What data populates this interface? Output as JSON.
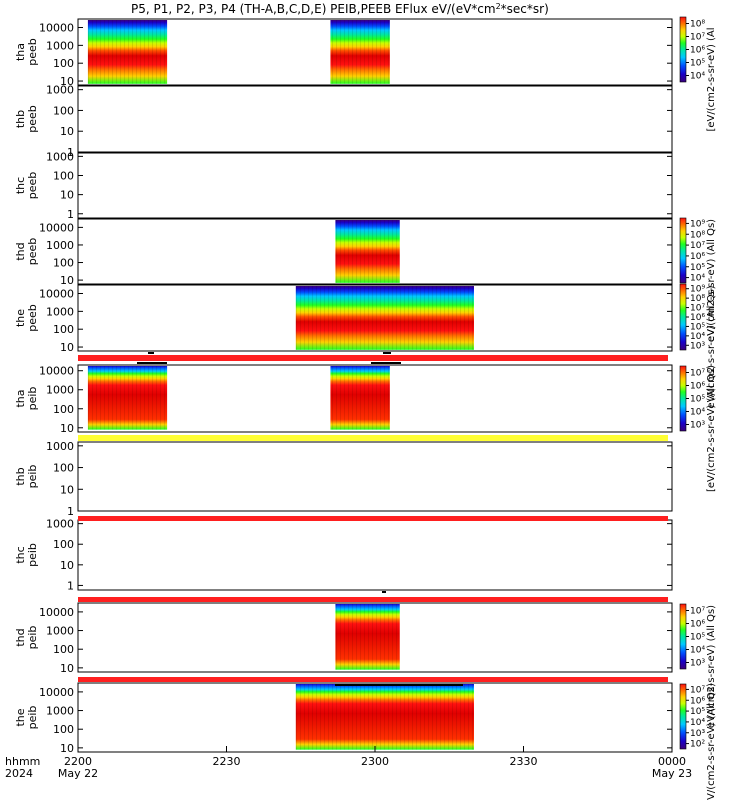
{
  "title": "P5, P1, P2, P3, P4 (TH-A,B,C,D,E) PEIB,PEEB EFlux eV/(eV*cm2*sec*sr)",
  "title_parts": {
    "main": "P5, P1, P2, P3, P4 (TH-A,B,C,D,E) PEIB,PEEB EFlux eV/(eV*cm",
    "sup": "2",
    "tail": "*sec*sr)"
  },
  "xaxis": {
    "range": [
      "2024-05-22 22:00",
      "2024-05-23 00:00"
    ],
    "ticks": [
      {
        "t": 0,
        "label": "2200",
        "sub": "May 22"
      },
      {
        "t": 30,
        "label": "2230",
        "sub": ""
      },
      {
        "t": 60,
        "label": "2300",
        "sub": ""
      },
      {
        "t": 90,
        "label": "2330",
        "sub": ""
      },
      {
        "t": 120,
        "label": "0000",
        "sub": "May 23"
      }
    ],
    "left_labels": [
      "hhmm",
      "2024"
    ]
  },
  "colors": {
    "red_bar": "#ff1f1f",
    "yellow_bar": "#ffff33",
    "colorscale": [
      "#3a007a",
      "#1a00c8",
      "#0050ff",
      "#00c8ff",
      "#00e8a0",
      "#20ff20",
      "#c8ff00",
      "#ffd000",
      "#ff7000",
      "#ff1010",
      "#d80000"
    ]
  },
  "chart_data": [
    {
      "type": "heatmap",
      "probe": "tha",
      "ylabel": [
        "tha",
        "peeb"
      ],
      "ylim": [
        6,
        30000
      ],
      "y_ticks": [
        "10",
        "100",
        "1000",
        "10000"
      ],
      "intervals": [
        [
          2,
          18
        ],
        [
          51,
          63
        ]
      ],
      "colorbar": {
        "ticks": [
          "10⁴",
          "10⁵",
          "10⁶",
          "10⁷",
          "10⁸"
        ],
        "label": "[eV/(cm2-s-sr-eV) (Al"
      }
    },
    {
      "type": "heatmap",
      "probe": "thb",
      "ylabel": [
        "thb",
        "peeb"
      ],
      "ylim": [
        1,
        1500
      ],
      "y_ticks": [
        "1",
        "10",
        "100",
        "1000"
      ],
      "intervals": []
    },
    {
      "type": "heatmap",
      "probe": "thc",
      "ylabel": [
        "thc",
        "peeb"
      ],
      "ylim": [
        0.6,
        1500
      ],
      "y_ticks": [
        "1",
        "10",
        "100",
        "1000"
      ],
      "intervals": []
    },
    {
      "type": "heatmap",
      "probe": "thd",
      "ylabel": [
        "thd",
        "peeb"
      ],
      "ylim": [
        6,
        30000
      ],
      "y_ticks": [
        "10",
        "100",
        "1000",
        "10000"
      ],
      "intervals": [
        [
          52,
          65
        ]
      ],
      "colorbar": {
        "ticks": [
          "10⁴",
          "10⁵",
          "10⁶",
          "10⁷",
          "10⁸",
          "10⁹"
        ],
        "label": "eV/(cm2-s-sr-eV) (All Qs)"
      }
    },
    {
      "type": "heatmap",
      "probe": "the",
      "ylabel": [
        "the",
        "peeb"
      ],
      "ylim": [
        6,
        30000
      ],
      "y_ticks": [
        "10",
        "100",
        "1000",
        "10000"
      ],
      "intervals": [
        [
          44,
          80
        ]
      ],
      "colorbar": {
        "ticks": [
          "10³",
          "10⁴",
          "10⁵",
          "10⁶",
          "10⁷",
          "10⁸",
          "10⁹"
        ],
        "label": "eV/(cm2-s-sr-eV) (All Qs)"
      }
    },
    {
      "type": "heatmap",
      "probe": "tha",
      "ylabel": [
        "tha",
        "peib"
      ],
      "ylim": [
        6,
        20000
      ],
      "y_ticks": [
        "10",
        "100",
        "1000",
        "10000"
      ],
      "intervals": [
        [
          2,
          18
        ],
        [
          51,
          63
        ]
      ],
      "colorbar": {
        "ticks": [
          "10³",
          "10⁴",
          "10⁵",
          "10⁶",
          "10⁷"
        ],
        "label": "[eV/(cm2-s-sr-eV) (All Qs)"
      }
    },
    {
      "type": "heatmap",
      "probe": "thb",
      "ylabel": [
        "thb",
        "peib"
      ],
      "ylim": [
        1,
        1500
      ],
      "y_ticks": [
        "1",
        "10",
        "100",
        "1000"
      ],
      "intervals": []
    },
    {
      "type": "heatmap",
      "probe": "thc",
      "ylabel": [
        "thc",
        "peib"
      ],
      "ylim": [
        0.6,
        1500
      ],
      "y_ticks": [
        "1",
        "10",
        "100",
        "1000"
      ],
      "intervals": []
    },
    {
      "type": "heatmap",
      "probe": "thd",
      "ylabel": [
        "thd",
        "peib"
      ],
      "ylim": [
        6,
        30000
      ],
      "y_ticks": [
        "10",
        "100",
        "1000",
        "10000"
      ],
      "intervals": [
        [
          52,
          65
        ]
      ],
      "colorbar": {
        "ticks": [
          "10³",
          "10⁴",
          "10⁵",
          "10⁶",
          "10⁷"
        ],
        "label": "eV/(cm2-s-sr-eV) (All Qs)"
      }
    },
    {
      "type": "heatmap",
      "probe": "the",
      "ylabel": [
        "the",
        "peib"
      ],
      "ylim": [
        6,
        30000
      ],
      "y_ticks": [
        "10",
        "100",
        "1000",
        "10000"
      ],
      "intervals": [
        [
          44,
          80
        ]
      ],
      "colorbar": {
        "ticks": [
          "10²",
          "10³",
          "10⁴",
          "10⁵",
          "10⁶",
          "10⁷"
        ],
        "label": "[eV/(cm2-s-sr-eV) (All Qs)"
      }
    }
  ]
}
